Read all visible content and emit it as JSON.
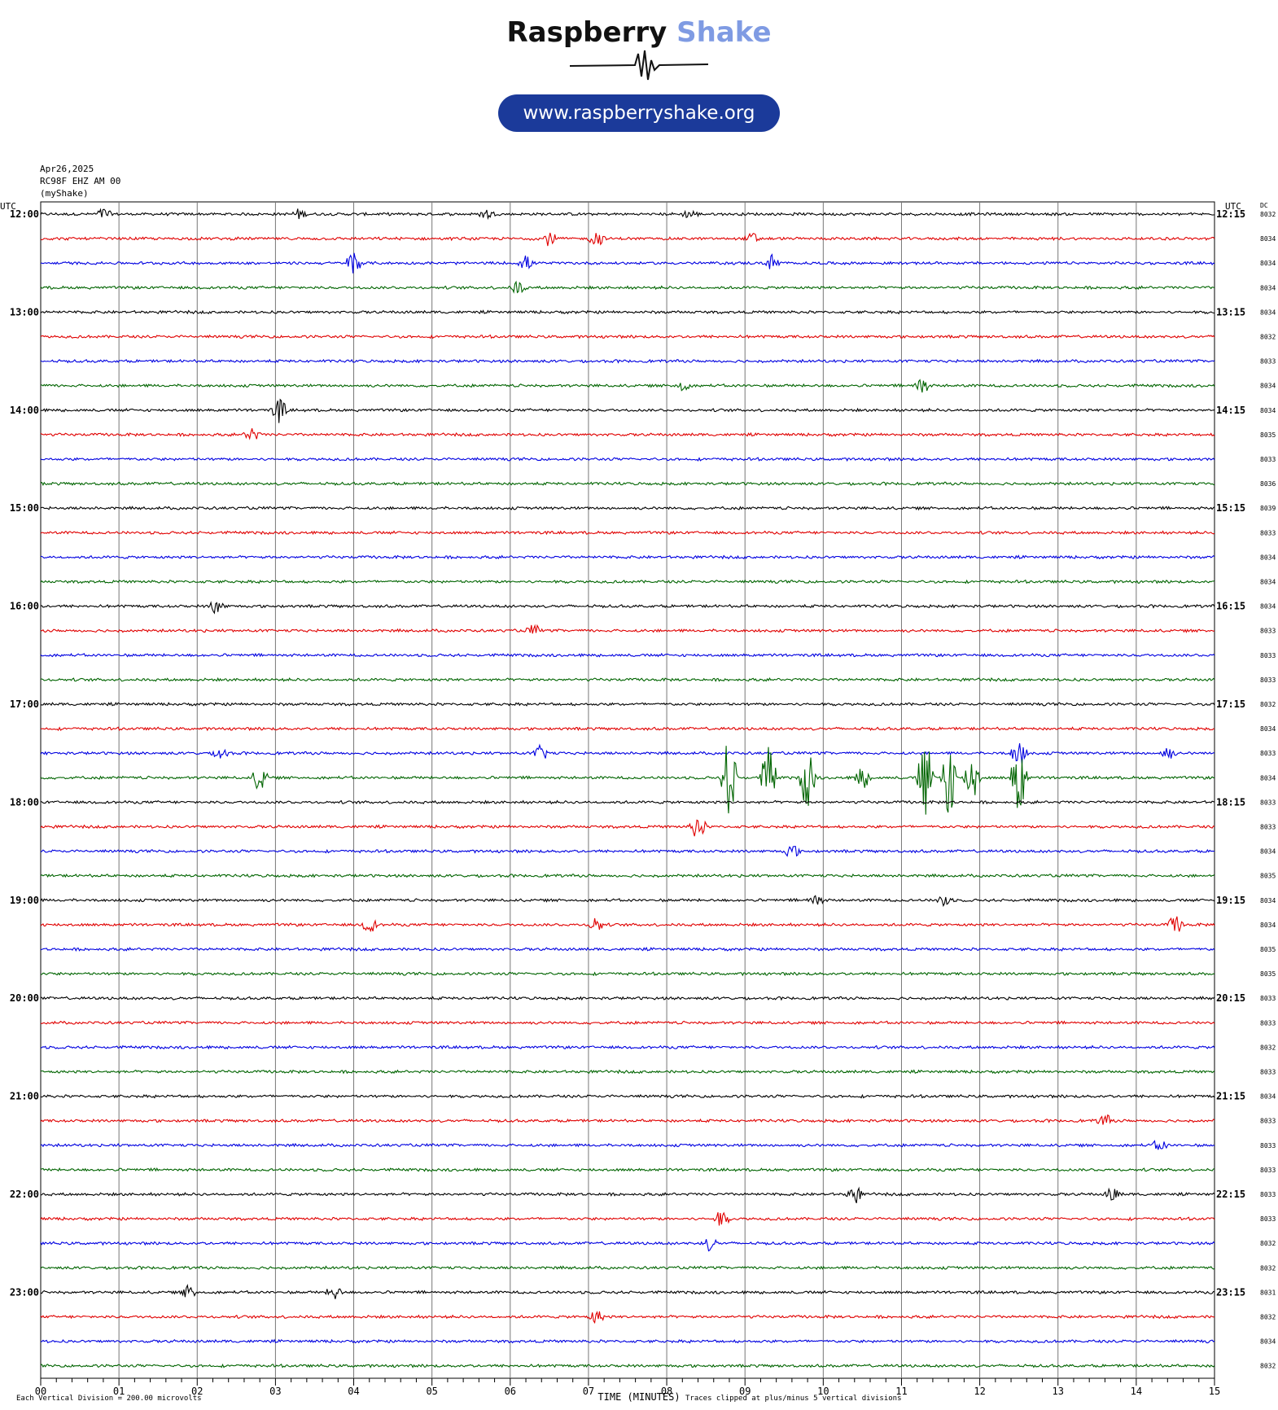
{
  "logo": {
    "title_part1": "Raspberry",
    "title_part2": "Shake",
    "url": "www.raspberryshake.org",
    "accent_color": "#7f9be3",
    "pill_color": "#1b3a9a"
  },
  "header": {
    "date": "Apr26,2025",
    "station": "RC98F EHZ AM 00",
    "network": "(myShake)"
  },
  "footer": {
    "division_note": "Each Vertical Division =  200.00 microvolts",
    "xlabel": "TIME (MINUTES)",
    "clip_note": "Traces clipped at plus/minus 5 vertical divisions"
  },
  "chart_data": {
    "type": "line",
    "title": "",
    "xlabel": "TIME (MINUTES)",
    "ylabel": "",
    "left_axis_label": "UTC",
    "right_axis_label": "UTC",
    "dc_label": "DC",
    "xlim": [
      0,
      15
    ],
    "x_ticks": [
      "00",
      "01",
      "02",
      "03",
      "04",
      "05",
      "06",
      "07",
      "08",
      "09",
      "10",
      "11",
      "12",
      "13",
      "14",
      "15"
    ],
    "left_hour_labels": [
      "12:00",
      "13:00",
      "14:00",
      "15:00",
      "16:00",
      "17:00",
      "18:00",
      "19:00",
      "20:00",
      "21:00",
      "22:00",
      "23:00"
    ],
    "right_hour_labels": [
      "12:15",
      "13:15",
      "14:15",
      "15:15",
      "16:15",
      "17:15",
      "18:15",
      "19:15",
      "20:15",
      "21:15",
      "22:15",
      "23:15"
    ],
    "trace_colors": [
      "#000000",
      "#e00000",
      "#0000e0",
      "#006400"
    ],
    "grid": true,
    "traces_per_hour": 4,
    "dc_values": [
      "8032",
      "8034",
      "8034",
      "8034",
      "8034",
      "8032",
      "8033",
      "8034",
      "8034",
      "8035",
      "8033",
      "8036",
      "8039",
      "8033",
      "8034",
      "8034",
      "8034",
      "8033",
      "8033",
      "8033",
      "8032",
      "8034",
      "8033",
      "8034",
      "8033",
      "8033",
      "8034",
      "8035",
      "8034",
      "8034",
      "8035",
      "8035",
      "8033",
      "8033",
      "8032",
      "8033",
      "8034",
      "8033",
      "8033",
      "8033",
      "8033",
      "8033",
      "8032",
      "8032",
      "8031",
      "8032",
      "8034",
      "8032"
    ],
    "events": [
      {
        "trace": 0,
        "minute": 0.8,
        "amp": 0.25
      },
      {
        "trace": 0,
        "minute": 3.3,
        "amp": 0.2
      },
      {
        "trace": 0,
        "minute": 5.7,
        "amp": 0.2
      },
      {
        "trace": 0,
        "minute": 8.3,
        "amp": 0.2
      },
      {
        "trace": 1,
        "minute": 6.5,
        "amp": 0.3
      },
      {
        "trace": 1,
        "minute": 7.1,
        "amp": 0.35
      },
      {
        "trace": 1,
        "minute": 9.1,
        "amp": 0.25
      },
      {
        "trace": 2,
        "minute": 4.0,
        "amp": 0.6
      },
      {
        "trace": 2,
        "minute": 6.2,
        "amp": 0.3
      },
      {
        "trace": 2,
        "minute": 9.35,
        "amp": 0.35
      },
      {
        "trace": 3,
        "minute": 6.1,
        "amp": 0.3
      },
      {
        "trace": 7,
        "minute": 8.2,
        "amp": 0.25
      },
      {
        "trace": 7,
        "minute": 11.25,
        "amp": 0.45
      },
      {
        "trace": 8,
        "minute": 3.05,
        "amp": 0.5
      },
      {
        "trace": 9,
        "minute": 2.7,
        "amp": 0.3
      },
      {
        "trace": 16,
        "minute": 2.25,
        "amp": 0.35
      },
      {
        "trace": 17,
        "minute": 6.3,
        "amp": 0.25
      },
      {
        "trace": 22,
        "minute": 2.3,
        "amp": 0.3
      },
      {
        "trace": 22,
        "minute": 6.4,
        "amp": 0.35
      },
      {
        "trace": 22,
        "minute": 12.5,
        "amp": 0.6
      },
      {
        "trace": 22,
        "minute": 14.4,
        "amp": 0.3
      },
      {
        "trace": 23,
        "minute": 2.8,
        "amp": 0.6
      },
      {
        "trace": 23,
        "minute": 8.8,
        "amp": 2.0
      },
      {
        "trace": 23,
        "minute": 9.3,
        "amp": 1.5
      },
      {
        "trace": 23,
        "minute": 9.8,
        "amp": 1.5
      },
      {
        "trace": 23,
        "minute": 10.5,
        "amp": 0.5
      },
      {
        "trace": 23,
        "minute": 11.3,
        "amp": 1.9
      },
      {
        "trace": 23,
        "minute": 11.6,
        "amp": 1.9
      },
      {
        "trace": 23,
        "minute": 11.9,
        "amp": 1.2
      },
      {
        "trace": 23,
        "minute": 12.5,
        "amp": 1.9
      },
      {
        "trace": 25,
        "minute": 8.4,
        "amp": 0.6
      },
      {
        "trace": 26,
        "minute": 9.6,
        "amp": 0.3
      },
      {
        "trace": 28,
        "minute": 9.9,
        "amp": 0.3
      },
      {
        "trace": 28,
        "minute": 11.55,
        "amp": 0.3
      },
      {
        "trace": 29,
        "minute": 4.2,
        "amp": 0.35
      },
      {
        "trace": 29,
        "minute": 7.1,
        "amp": 0.35
      },
      {
        "trace": 29,
        "minute": 14.5,
        "amp": 0.4
      },
      {
        "trace": 37,
        "minute": 13.6,
        "amp": 0.25
      },
      {
        "trace": 38,
        "minute": 14.3,
        "amp": 0.25
      },
      {
        "trace": 40,
        "minute": 10.4,
        "amp": 0.4
      },
      {
        "trace": 40,
        "minute": 13.7,
        "amp": 0.3
      },
      {
        "trace": 41,
        "minute": 8.7,
        "amp": 0.35
      },
      {
        "trace": 42,
        "minute": 8.55,
        "amp": 0.3
      },
      {
        "trace": 44,
        "minute": 1.9,
        "amp": 0.3
      },
      {
        "trace": 44,
        "minute": 3.75,
        "amp": 0.3
      },
      {
        "trace": 45,
        "minute": 7.1,
        "amp": 0.3
      }
    ]
  }
}
